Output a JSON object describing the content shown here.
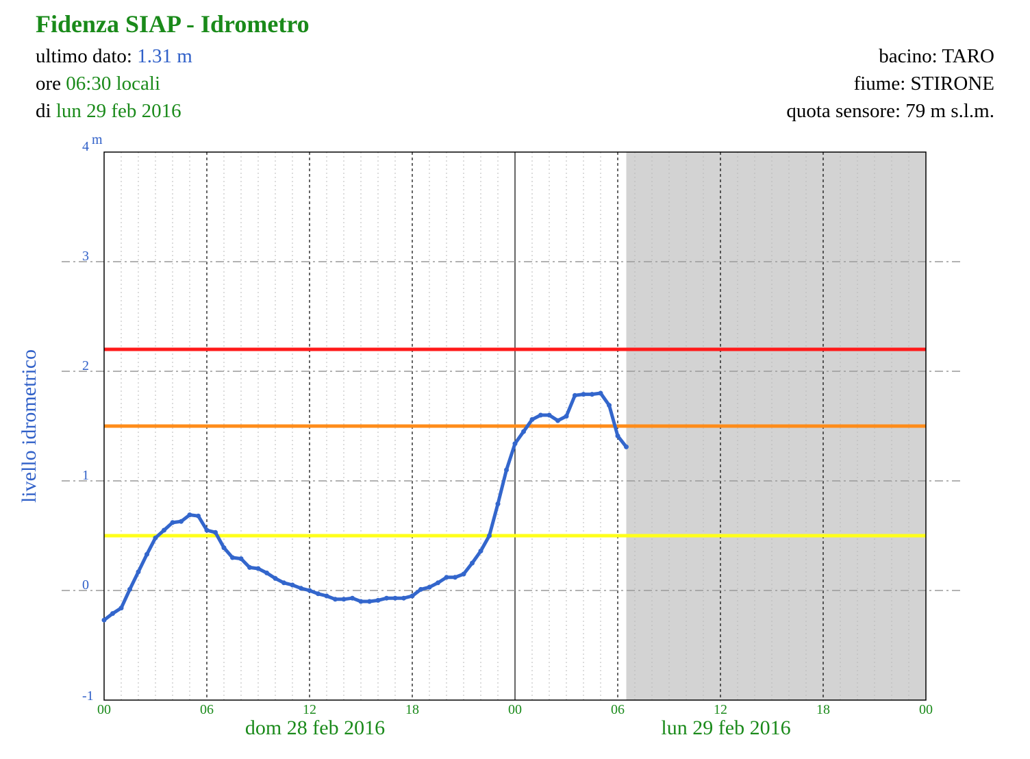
{
  "header": {
    "title": "Fidenza SIAP - Idrometro",
    "ultimo_label": "ultimo dato:",
    "ultimo_value": "1.31 m",
    "ore_label": "ore",
    "ore_value": "06:30 locali",
    "di_label": "di",
    "di_value": "lun 29 feb 2016",
    "bacino": "bacino: TARO",
    "fiume": "fiume: STIRONE",
    "quota": "quota sensore: 79 m s.l.m."
  },
  "colors": {
    "series": "#3366cc",
    "text_green": "#1a8a1a",
    "text_blue": "#3060c8",
    "threshold_red": "#ff1a1a",
    "threshold_orange": "#ff8c1a",
    "threshold_yellow": "#ffff1a",
    "future_shade": "#d3d3d3"
  },
  "chart_data": {
    "type": "line",
    "ylabel": "livello idrometrico",
    "unit": "m",
    "ylim": [
      -1,
      4
    ],
    "yticks": [
      -1,
      0,
      1,
      2,
      3,
      4
    ],
    "xlim_hours": [
      0,
      48
    ],
    "xticks": [
      {
        "hour": 0,
        "label": "00"
      },
      {
        "hour": 6,
        "label": "06"
      },
      {
        "hour": 12,
        "label": "12"
      },
      {
        "hour": 18,
        "label": "18"
      },
      {
        "hour": 24,
        "label": "00"
      },
      {
        "hour": 30,
        "label": "06"
      },
      {
        "hour": 36,
        "label": "12"
      },
      {
        "hour": 42,
        "label": "18"
      },
      {
        "hour": 48,
        "label": "00"
      }
    ],
    "day_labels": [
      {
        "hour": 12,
        "label": "dom 28 feb 2016"
      },
      {
        "hour": 36,
        "label": "lun 29 feb 2016"
      }
    ],
    "shaded_from_hour": 30.5,
    "thresholds": [
      {
        "value": 2.2,
        "color": "red"
      },
      {
        "value": 1.5,
        "color": "orange"
      },
      {
        "value": 0.5,
        "color": "yellow"
      }
    ],
    "grid": true,
    "series": [
      {
        "points": [
          [
            0.0,
            -0.27
          ],
          [
            0.5,
            -0.21
          ],
          [
            1.0,
            -0.16
          ],
          [
            1.5,
            0.01
          ],
          [
            2.0,
            0.17
          ],
          [
            2.5,
            0.33
          ],
          [
            3.0,
            0.48
          ],
          [
            3.5,
            0.55
          ],
          [
            4.0,
            0.62
          ],
          [
            4.5,
            0.63
          ],
          [
            5.0,
            0.69
          ],
          [
            5.5,
            0.68
          ],
          [
            6.0,
            0.55
          ],
          [
            6.5,
            0.53
          ],
          [
            7.0,
            0.39
          ],
          [
            7.5,
            0.3
          ],
          [
            8.0,
            0.29
          ],
          [
            8.5,
            0.21
          ],
          [
            9.0,
            0.2
          ],
          [
            9.5,
            0.16
          ],
          [
            10.0,
            0.11
          ],
          [
            10.5,
            0.07
          ],
          [
            11.0,
            0.05
          ],
          [
            11.5,
            0.02
          ],
          [
            12.0,
            0.0
          ],
          [
            12.5,
            -0.03
          ],
          [
            13.0,
            -0.05
          ],
          [
            13.5,
            -0.08
          ],
          [
            14.0,
            -0.08
          ],
          [
            14.5,
            -0.07
          ],
          [
            15.0,
            -0.1
          ],
          [
            15.5,
            -0.1
          ],
          [
            16.0,
            -0.09
          ],
          [
            16.5,
            -0.07
          ],
          [
            17.0,
            -0.07
          ],
          [
            17.5,
            -0.07
          ],
          [
            18.0,
            -0.05
          ],
          [
            18.5,
            0.01
          ],
          [
            19.0,
            0.03
          ],
          [
            19.5,
            0.07
          ],
          [
            20.0,
            0.12
          ],
          [
            20.5,
            0.12
          ],
          [
            21.0,
            0.15
          ],
          [
            21.5,
            0.25
          ],
          [
            22.0,
            0.36
          ],
          [
            22.5,
            0.5
          ],
          [
            23.0,
            0.79
          ],
          [
            23.5,
            1.1
          ],
          [
            24.0,
            1.34
          ],
          [
            24.5,
            1.45
          ],
          [
            25.0,
            1.56
          ],
          [
            25.5,
            1.6
          ],
          [
            26.0,
            1.6
          ],
          [
            26.5,
            1.55
          ],
          [
            27.0,
            1.59
          ],
          [
            27.5,
            1.78
          ],
          [
            28.0,
            1.79
          ],
          [
            28.5,
            1.79
          ],
          [
            29.0,
            1.8
          ],
          [
            29.5,
            1.69
          ],
          [
            30.0,
            1.41
          ],
          [
            30.5,
            1.31
          ]
        ]
      }
    ]
  }
}
